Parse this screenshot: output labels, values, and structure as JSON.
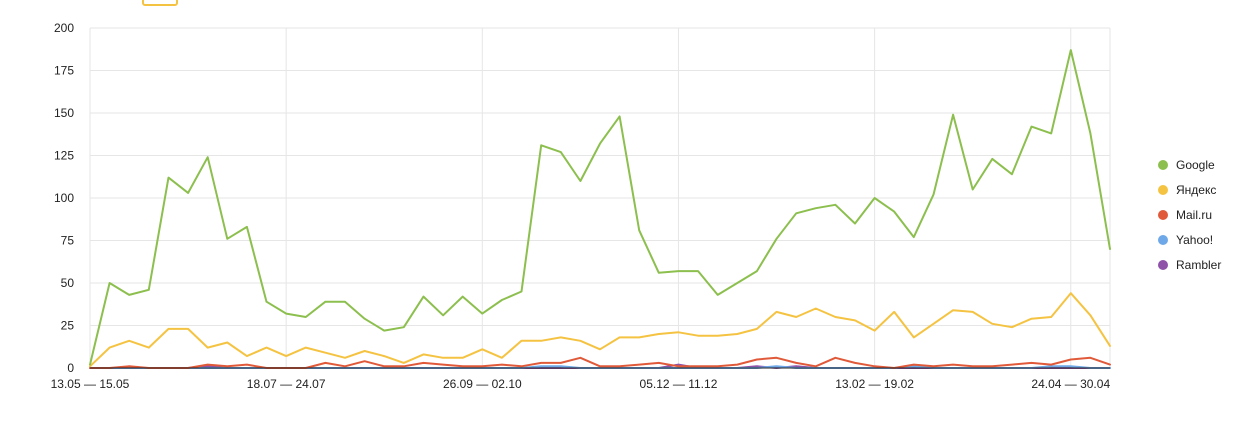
{
  "chart_data": {
    "type": "line",
    "title": "",
    "xlabel": "",
    "ylabel": "",
    "ylim": [
      0,
      200
    ],
    "yticks": [
      "0",
      "25",
      "50",
      "75",
      "100",
      "125",
      "150",
      "175",
      "200"
    ],
    "xtick_labels": [
      "13.05 — 15.05",
      "18.07 — 24.07",
      "26.09 — 02.10",
      "05.12 — 11.12",
      "13.02 — 19.02",
      "24.04 — 30.04"
    ],
    "xtick_index": [
      0,
      10,
      20,
      30,
      40,
      50
    ],
    "grid": true,
    "legend_position": "right",
    "series": [
      {
        "name": "Google",
        "color": "#8cbf4e",
        "values": [
          2,
          50,
          43,
          46,
          112,
          103,
          124,
          76,
          83,
          39,
          32,
          30,
          39,
          39,
          29,
          22,
          24,
          42,
          31,
          42,
          32,
          40,
          45,
          131,
          127,
          110,
          132,
          148,
          81,
          56,
          57,
          57,
          43,
          50,
          57,
          76,
          91,
          94,
          96,
          85,
          100,
          92,
          77,
          102,
          149,
          105,
          123,
          114,
          142,
          138,
          187,
          138,
          70
        ]
      },
      {
        "name": "Яндекс",
        "color": "#f5c342",
        "values": [
          1,
          12,
          16,
          12,
          23,
          23,
          12,
          15,
          7,
          12,
          7,
          12,
          9,
          6,
          10,
          7,
          3,
          8,
          6,
          6,
          11,
          6,
          16,
          16,
          18,
          16,
          11,
          18,
          18,
          20,
          21,
          19,
          19,
          20,
          23,
          33,
          30,
          35,
          30,
          28,
          22,
          33,
          18,
          26,
          34,
          33,
          26,
          24,
          29,
          30,
          44,
          31,
          13
        ]
      },
      {
        "name": "Mail.ru",
        "color": "#e05a3a",
        "values": [
          0,
          0,
          1,
          0,
          0,
          0,
          2,
          1,
          2,
          0,
          0,
          0,
          3,
          1,
          4,
          1,
          1,
          3,
          2,
          1,
          1,
          2,
          1,
          3,
          3,
          6,
          1,
          1,
          2,
          3,
          1,
          1,
          1,
          2,
          5,
          6,
          3,
          1,
          6,
          3,
          1,
          0,
          2,
          1,
          2,
          1,
          1,
          2,
          3,
          2,
          5,
          6,
          2
        ]
      },
      {
        "name": "Yahoo!",
        "color": "#6ea8e8",
        "values": [
          0,
          0,
          0,
          0,
          0,
          0,
          0,
          0,
          0,
          0,
          0,
          0,
          0,
          0,
          0,
          0,
          0,
          0,
          0,
          0,
          0,
          0,
          0,
          1,
          1,
          0,
          0,
          0,
          0,
          0,
          0,
          0,
          0,
          0,
          0,
          1,
          0,
          0,
          0,
          0,
          0,
          0,
          1,
          0,
          0,
          0,
          0,
          0,
          0,
          1,
          1,
          0,
          0
        ]
      },
      {
        "name": "Rambler",
        "color": "#8e52a8",
        "values": [
          0,
          0,
          0,
          0,
          0,
          0,
          1,
          0,
          0,
          0,
          0,
          0,
          0,
          0,
          0,
          0,
          0,
          0,
          0,
          0,
          0,
          0,
          0,
          0,
          0,
          0,
          0,
          0,
          0,
          0,
          2,
          0,
          0,
          0,
          1,
          0,
          1,
          0,
          0,
          0,
          0,
          0,
          0,
          0,
          0,
          0,
          0,
          0,
          0,
          0,
          0,
          0,
          0
        ]
      }
    ]
  }
}
